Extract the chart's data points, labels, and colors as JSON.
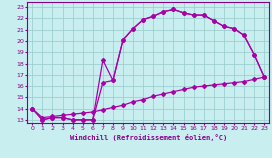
{
  "xlabel": "Windchill (Refroidissement éolien,°C)",
  "bg_color": "#c8eef0",
  "grid_color": "#9dcfcf",
  "line_color": "#aa00aa",
  "xlim": [
    -0.5,
    23.5
  ],
  "ylim": [
    12.7,
    23.5
  ],
  "xticks": [
    0,
    1,
    2,
    3,
    4,
    5,
    6,
    7,
    8,
    9,
    10,
    11,
    12,
    13,
    14,
    15,
    16,
    17,
    18,
    19,
    20,
    21,
    22,
    23
  ],
  "yticks": [
    13,
    14,
    15,
    16,
    17,
    18,
    19,
    20,
    21,
    22,
    23
  ],
  "line1_x": [
    0,
    1,
    2,
    3,
    4,
    5,
    6,
    7,
    8,
    9,
    10,
    11,
    12,
    13,
    14,
    15,
    16,
    17,
    18,
    19,
    20,
    21,
    22,
    23
  ],
  "line1_y": [
    14.0,
    13.0,
    13.2,
    13.2,
    13.0,
    13.0,
    13.0,
    16.3,
    16.5,
    20.1,
    21.1,
    21.9,
    22.2,
    22.6,
    22.8,
    22.5,
    22.3,
    22.3,
    21.8,
    21.3,
    21.1,
    20.5,
    18.8,
    16.8
  ],
  "line2_x": [
    0,
    1,
    2,
    3,
    4,
    5,
    6,
    7,
    8,
    9,
    10,
    11,
    12,
    13,
    14,
    15,
    16,
    17,
    18,
    19,
    20,
    21,
    22,
    23
  ],
  "line2_y": [
    14.0,
    13.0,
    13.2,
    13.2,
    13.0,
    13.0,
    13.0,
    18.3,
    16.5,
    20.1,
    21.1,
    21.9,
    22.2,
    22.6,
    22.8,
    22.5,
    22.3,
    22.3,
    21.8,
    21.3,
    21.1,
    20.5,
    18.8,
    16.8
  ],
  "line3_x": [
    0,
    1,
    2,
    3,
    4,
    5,
    6,
    7,
    8,
    9,
    10,
    11,
    12,
    13,
    14,
    15,
    16,
    17,
    18,
    19,
    20,
    21,
    22,
    23
  ],
  "line3_y": [
    14.0,
    13.2,
    13.3,
    13.4,
    13.5,
    13.6,
    13.7,
    13.9,
    14.1,
    14.3,
    14.6,
    14.8,
    15.1,
    15.3,
    15.5,
    15.7,
    15.9,
    16.0,
    16.1,
    16.2,
    16.3,
    16.4,
    16.6,
    16.8
  ]
}
